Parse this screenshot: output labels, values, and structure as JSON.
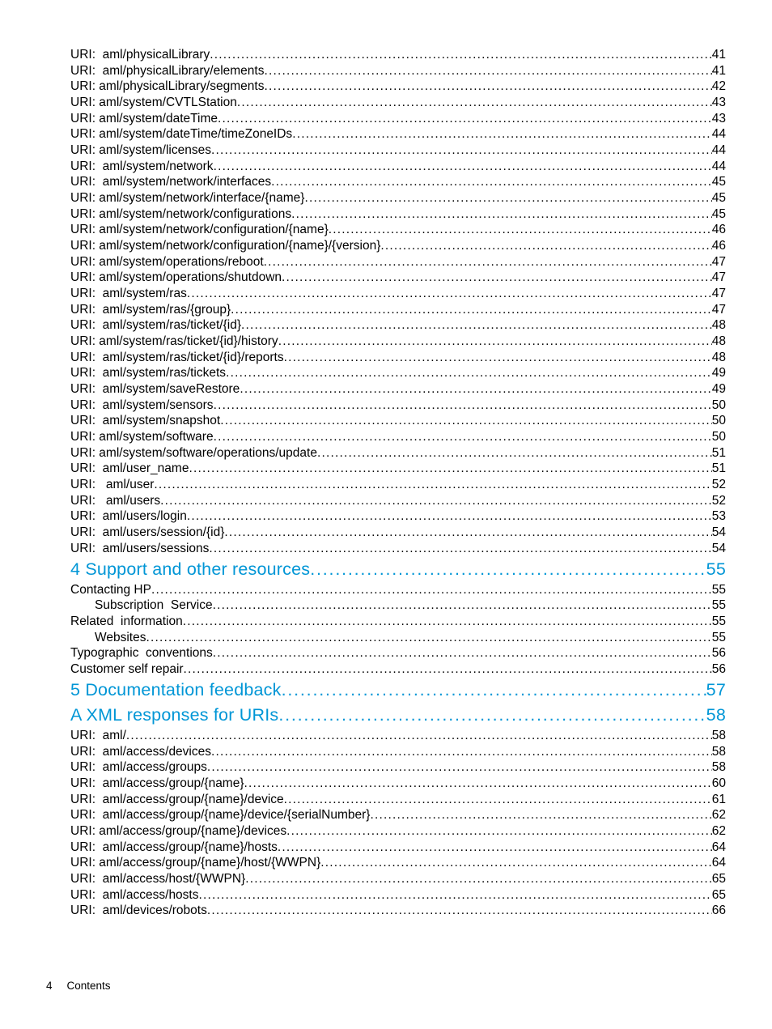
{
  "dots_segment": "..............................................................................................................................................................................................................",
  "footer": {
    "page": "4",
    "label": "Contents"
  },
  "entries": [
    {
      "level": 2,
      "label": "URI:  aml/physicalLibrary",
      "page": "41"
    },
    {
      "level": 2,
      "label": "URI:  aml/physicalLibrary/elements",
      "page": "41"
    },
    {
      "level": 2,
      "label": "URI: aml/physicalLibrary/segments",
      "page": "42"
    },
    {
      "level": 2,
      "label": "URI: aml/system/CVTLStation",
      "page": "43"
    },
    {
      "level": 2,
      "label": "URI: aml/system/dateTime",
      "page": "43"
    },
    {
      "level": 2,
      "label": "URI: aml/system/dateTime/timeZoneIDs",
      "page": "44"
    },
    {
      "level": 2,
      "label": "URI: aml/system/licenses",
      "page": "44"
    },
    {
      "level": 2,
      "label": "URI:  aml/system/network",
      "page": "44"
    },
    {
      "level": 2,
      "label": "URI:  aml/system/network/interfaces",
      "page": "45"
    },
    {
      "level": 2,
      "label": "URI: aml/system/network/interface/{name}",
      "page": "45"
    },
    {
      "level": 2,
      "label": "URI: aml/system/network/configurations",
      "page": "45"
    },
    {
      "level": 2,
      "label": "URI: aml/system/network/configuration/{name}",
      "page": "46"
    },
    {
      "level": 2,
      "label": "URI: aml/system/network/configuration/{name}/{version}",
      "page": "46"
    },
    {
      "level": 2,
      "label": "URI: aml/system/operations/reboot",
      "page": "47"
    },
    {
      "level": 2,
      "label": "URI: aml/system/operations/shutdown",
      "page": "47"
    },
    {
      "level": 2,
      "label": "URI:  aml/system/ras",
      "page": "47"
    },
    {
      "level": 2,
      "label": "URI:  aml/system/ras/{group}",
      "page": "47"
    },
    {
      "level": 2,
      "label": "URI:  aml/system/ras/ticket/{id}",
      "page": "48"
    },
    {
      "level": 2,
      "label": "URI: aml/system/ras/ticket/{id}/history",
      "page": "48"
    },
    {
      "level": 2,
      "label": "URI:  aml/system/ras/ticket/{id}/reports",
      "page": "48"
    },
    {
      "level": 2,
      "label": "URI:  aml/system/ras/tickets",
      "page": "49"
    },
    {
      "level": 2,
      "label": "URI:  aml/system/saveRestore",
      "page": "49"
    },
    {
      "level": 2,
      "label": "URI:  aml/system/sensors",
      "page": "50"
    },
    {
      "level": 2,
      "label": "URI:  aml/system/snapshot",
      "page": "50"
    },
    {
      "level": 2,
      "label": "URI: aml/system/software",
      "page": "50"
    },
    {
      "level": 2,
      "label": "URI: aml/system/software/operations/update",
      "page": "51"
    },
    {
      "level": 2,
      "label": "URI:  aml/user_name",
      "page": "51"
    },
    {
      "level": 2,
      "label": "URI:   aml/user",
      "page": "52"
    },
    {
      "level": 2,
      "label": "URI:   aml/users",
      "page": "52"
    },
    {
      "level": 2,
      "label": "URI:  aml/users/login",
      "page": "53"
    },
    {
      "level": 2,
      "label": "URI:  aml/users/session/{id}",
      "page": "54"
    },
    {
      "level": 2,
      "label": "URI:  aml/users/sessions",
      "page": "54"
    },
    {
      "level": 1,
      "label": "4 Support and other resources",
      "page": "55"
    },
    {
      "level": 2,
      "label": "Contacting HP",
      "page": "55"
    },
    {
      "level": 3,
      "label": "Subscription  Service",
      "page": "55"
    },
    {
      "level": 2,
      "label": "Related  information",
      "page": "55"
    },
    {
      "level": 3,
      "label": "Websites",
      "page": "55"
    },
    {
      "level": 2,
      "label": "Typographic  conventions",
      "page": "56"
    },
    {
      "level": 2,
      "label": "Customer self repair",
      "page": "56"
    },
    {
      "level": 1,
      "label": "5 Documentation feedback",
      "page": "57"
    },
    {
      "level": 1,
      "label": "A XML responses for URIs",
      "page": "58"
    },
    {
      "level": 2,
      "label": "URI:  aml/",
      "page": "58"
    },
    {
      "level": 2,
      "label": "URI:  aml/access/devices",
      "page": "58"
    },
    {
      "level": 2,
      "label": "URI:  aml/access/groups",
      "page": "58"
    },
    {
      "level": 2,
      "label": "URI:  aml/access/group/{name}",
      "page": "60"
    },
    {
      "level": 2,
      "label": "URI:  aml/access/group/{name}/device",
      "page": "61"
    },
    {
      "level": 2,
      "label": "URI:  aml/access/group/{name}/device/{serialNumber}",
      "page": "62"
    },
    {
      "level": 2,
      "label": "URI: aml/access/group/{name}/devices",
      "page": "62"
    },
    {
      "level": 2,
      "label": "URI:  aml/access/group/{name}/hosts",
      "page": "64"
    },
    {
      "level": 2,
      "label": "URI: aml/access/group/{name}/host/{WWPN}",
      "page": "64"
    },
    {
      "level": 2,
      "label": "URI:  aml/access/host/{WWPN}",
      "page": "65"
    },
    {
      "level": 2,
      "label": "URI:  aml/access/hosts",
      "page": "65"
    },
    {
      "level": 2,
      "label": "URI:  aml/devices/robots",
      "page": "66"
    }
  ]
}
